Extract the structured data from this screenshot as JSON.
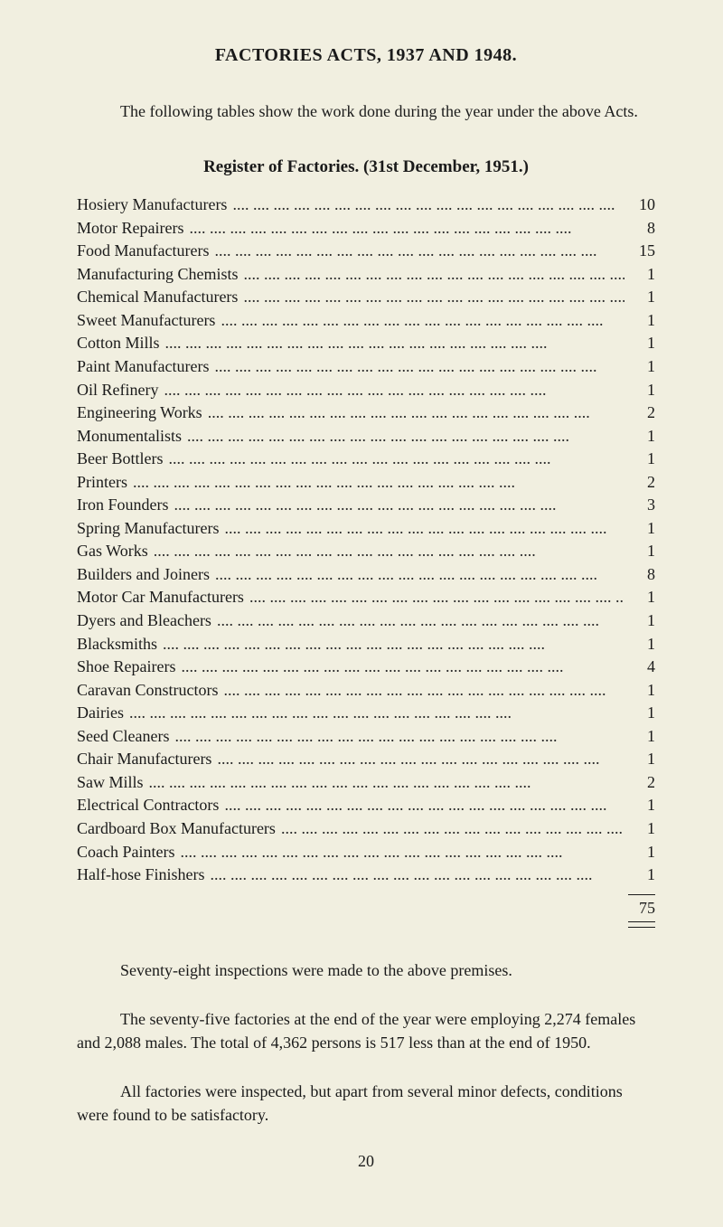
{
  "title": "FACTORIES ACTS, 1937 AND 1948.",
  "intro": "The following tables show the work done during the year under the above Acts.",
  "subtitle": "Register of Factories. (31st December, 1951.)",
  "register": [
    {
      "label": "Hosiery Manufacturers",
      "value": "10"
    },
    {
      "label": "Motor Repairers",
      "value": "8"
    },
    {
      "label": "Food Manufacturers",
      "value": "15"
    },
    {
      "label": "Manufacturing Chemists",
      "value": "1"
    },
    {
      "label": "Chemical Manufacturers",
      "value": "1"
    },
    {
      "label": "Sweet Manufacturers",
      "value": "1"
    },
    {
      "label": "Cotton Mills",
      "value": "1"
    },
    {
      "label": "Paint Manufacturers",
      "value": "1"
    },
    {
      "label": "Oil Refinery",
      "value": "1"
    },
    {
      "label": "Engineering Works",
      "value": "2"
    },
    {
      "label": "Monumentalists",
      "value": "1"
    },
    {
      "label": "Beer Bottlers",
      "value": "1"
    },
    {
      "label": "Printers",
      "value": "2"
    },
    {
      "label": "Iron Founders",
      "value": "3"
    },
    {
      "label": "Spring Manufacturers",
      "value": "1"
    },
    {
      "label": "Gas Works",
      "value": "1"
    },
    {
      "label": "Builders and Joiners",
      "value": "8"
    },
    {
      "label": "Motor Car Manufacturers",
      "value": "1"
    },
    {
      "label": "Dyers and Bleachers",
      "value": "1"
    },
    {
      "label": "Blacksmiths",
      "value": "1"
    },
    {
      "label": "Shoe Repairers",
      "value": "4"
    },
    {
      "label": "Caravan Constructors",
      "value": "1"
    },
    {
      "label": "Dairies",
      "value": "1"
    },
    {
      "label": "Seed Cleaners",
      "value": "1"
    },
    {
      "label": "Chair Manufacturers",
      "value": "1"
    },
    {
      "label": "Saw Mills",
      "value": "2"
    },
    {
      "label": "Electrical Contractors",
      "value": "1"
    },
    {
      "label": "Cardboard Box Manufacturers",
      "value": "1"
    },
    {
      "label": "Coach Painters",
      "value": "1"
    },
    {
      "label": "Half-hose Finishers",
      "value": "1"
    }
  ],
  "total": "75",
  "para1": "Seventy-eight inspections were made to the above premises.",
  "para2": "The seventy-five factories at the end of the year were employing 2,274 females and 2,088 males. The total of 4,362 persons is 517 less than at the end of 1950.",
  "para3": "All factories were inspected, but apart from several minor defects, conditions were found to be satisfactory.",
  "pageNum": "20",
  "dots": "....    ....    ....    ....    ....    ....    ....    ....    ....    ....    ....    ....    ....    ....    ....    ....    ....    ....    ...."
}
